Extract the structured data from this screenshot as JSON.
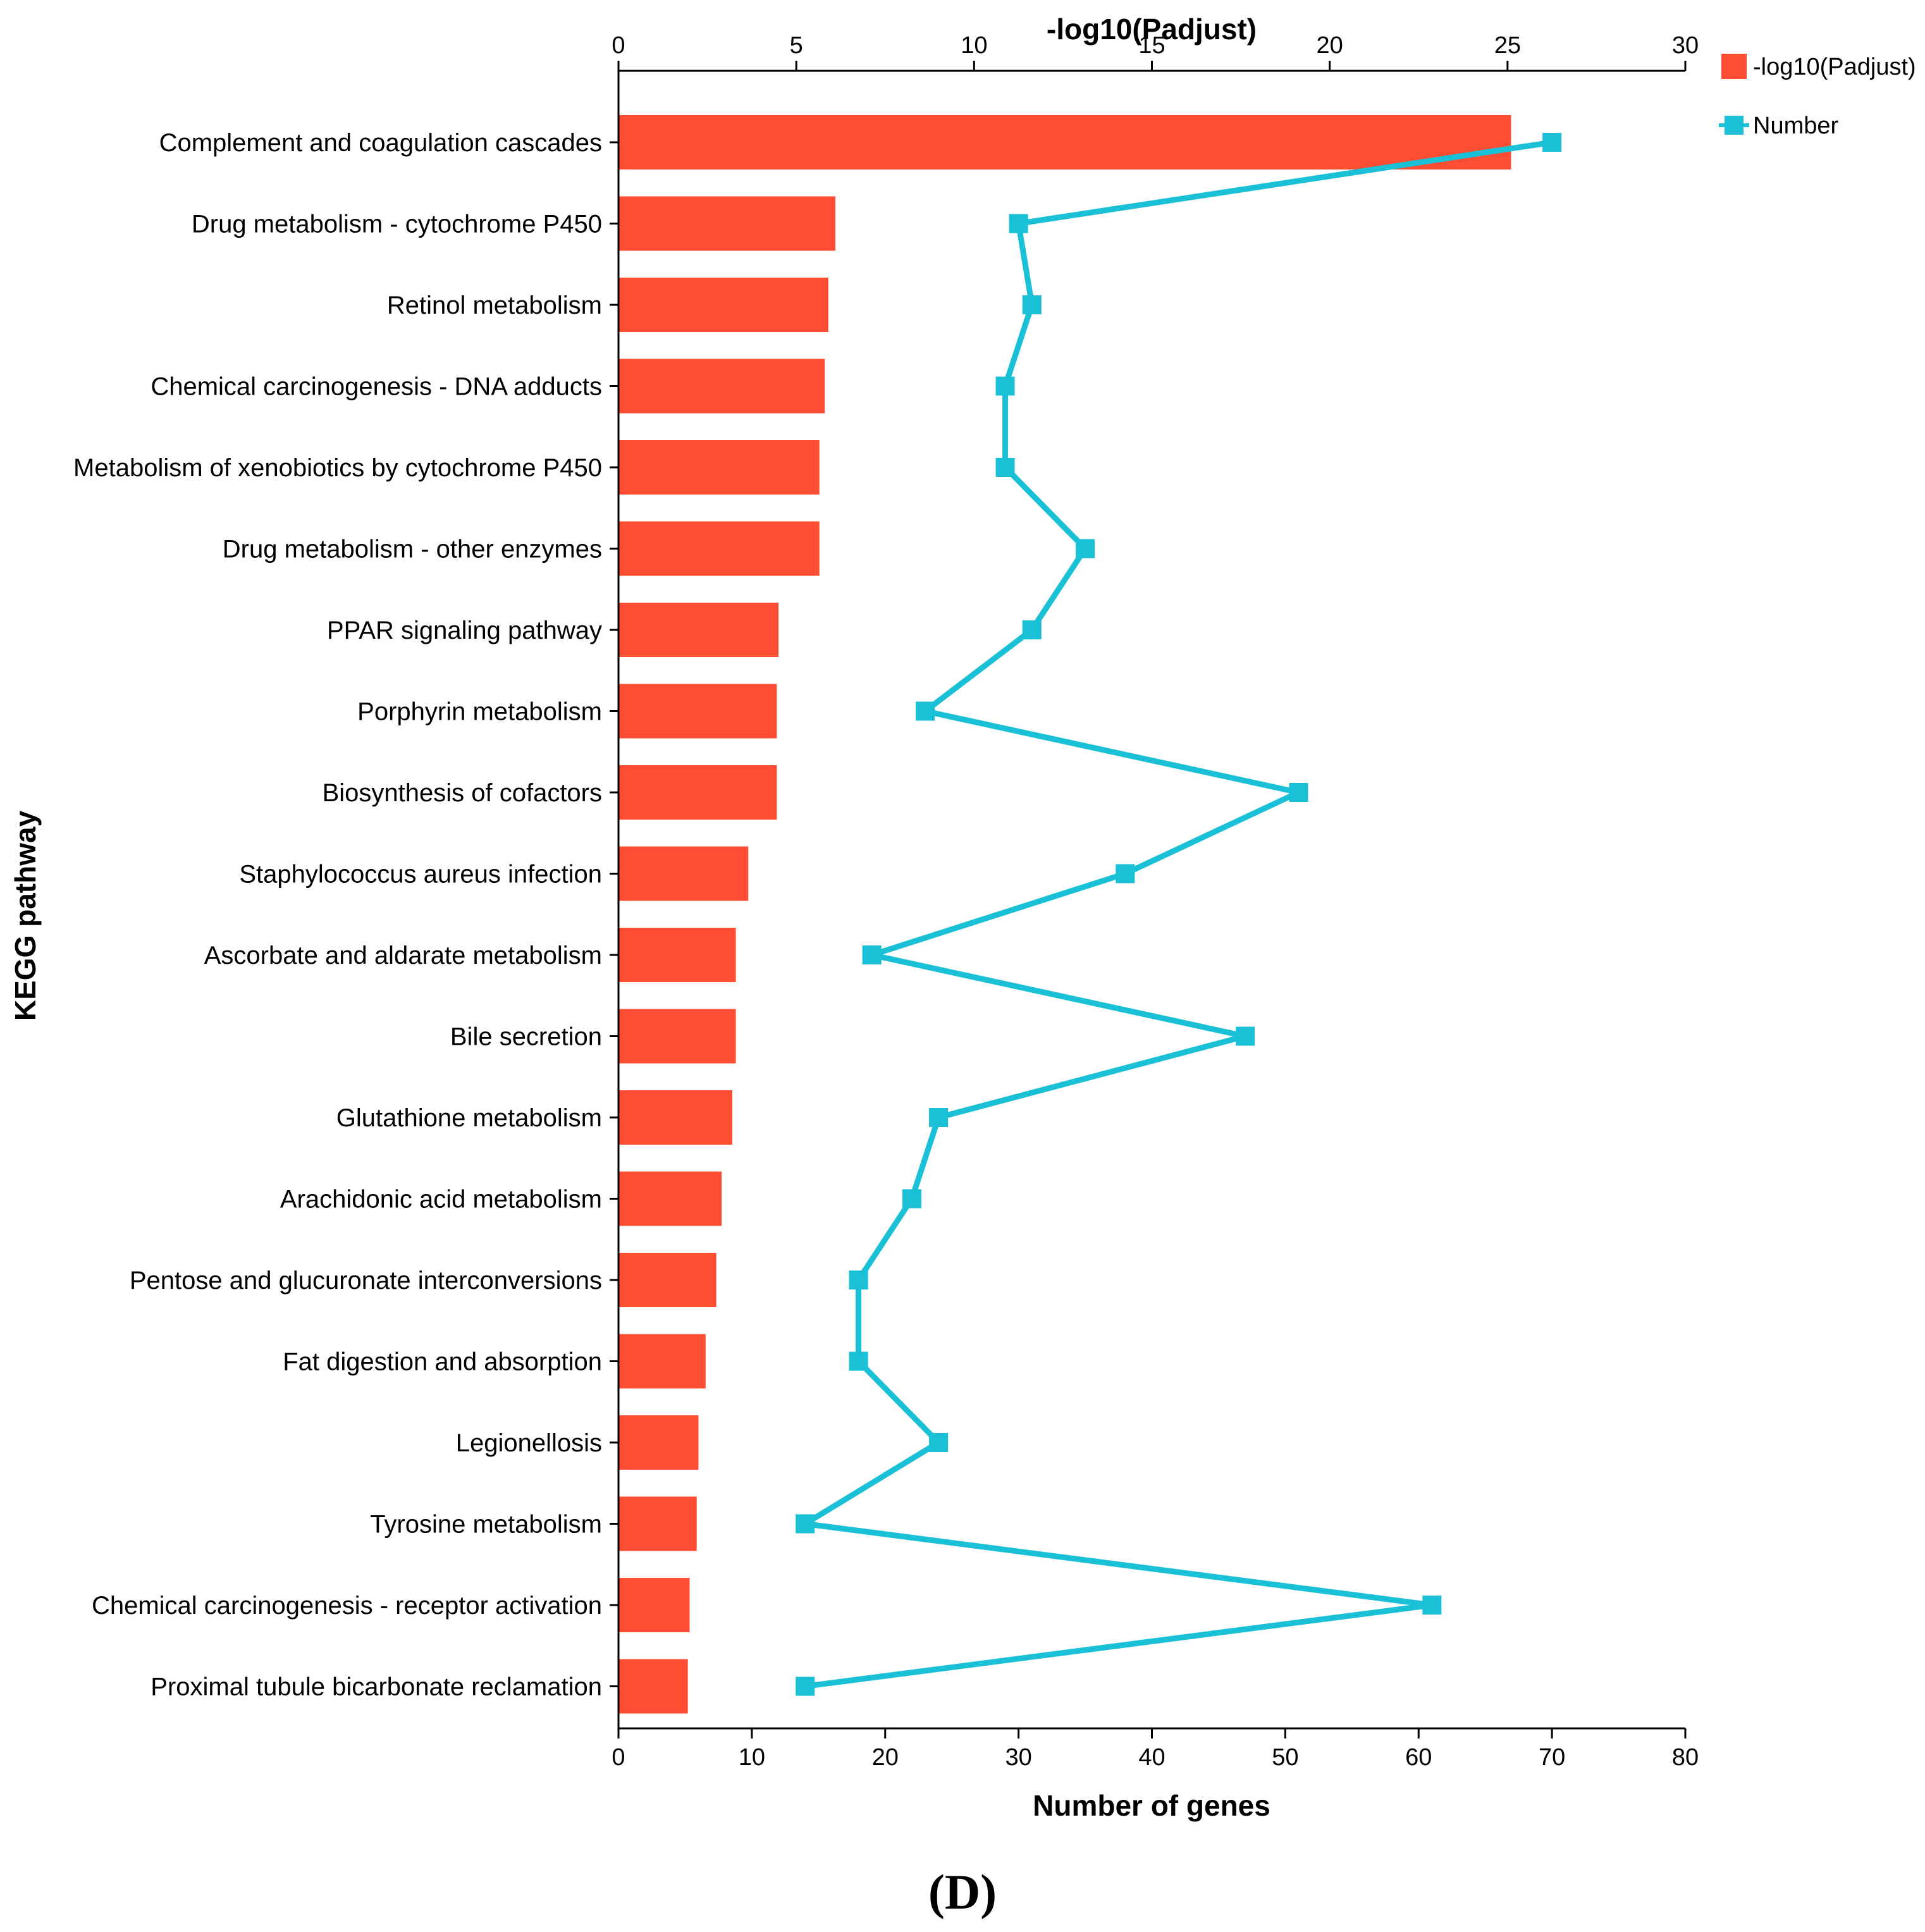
{
  "chart_data": {
    "type": "bar",
    "ylabel": "KEGG pathway",
    "categories": [
      "Complement and coagulation cascades",
      "Drug metabolism - cytochrome P450",
      "Retinol metabolism",
      "Chemical carcinogenesis - DNA adducts",
      "Metabolism of xenobiotics by cytochrome P450",
      "Drug metabolism - other enzymes",
      "PPAR signaling pathway",
      "Porphyrin metabolism",
      "Biosynthesis of cofactors",
      "Staphylococcus aureus infection",
      "Ascorbate and aldarate metabolism",
      "Bile secretion",
      "Glutathione metabolism",
      "Arachidonic acid metabolism",
      "Pentose and glucuronate interconversions",
      "Fat digestion and absorption",
      "Legionellosis",
      "Tyrosine metabolism",
      "Chemical carcinogenesis - receptor activation",
      "Proximal tubule bicarbonate reclamation"
    ],
    "top_axis": {
      "label": "-log10(Padjust)",
      "range": [
        0,
        30
      ],
      "ticks": [
        "0",
        "5",
        "10",
        "15",
        "20",
        "25",
        "30"
      ]
    },
    "bottom_axis": {
      "label": "Number of genes",
      "range": [
        0,
        80
      ],
      "ticks": [
        "0",
        "10",
        "20",
        "30",
        "40",
        "50",
        "60",
        "70",
        "80"
      ]
    },
    "series": [
      {
        "name": "-log10(Padjust)",
        "type": "bar",
        "axis": "top",
        "color": "#ff4d33",
        "values": [
          25.1,
          6.1,
          5.9,
          5.8,
          5.65,
          5.65,
          4.5,
          4.45,
          4.45,
          3.65,
          3.3,
          3.3,
          3.2,
          2.9,
          2.75,
          2.45,
          2.25,
          2.2,
          2.0,
          1.95
        ]
      },
      {
        "name": "Number",
        "type": "line",
        "axis": "bottom",
        "color": "#19c0d6",
        "values": [
          70,
          30,
          31,
          29,
          29,
          35,
          31,
          23,
          51,
          38,
          19,
          47,
          24,
          22,
          18,
          18,
          24,
          14,
          61,
          14
        ]
      }
    ],
    "legend": {
      "position": "top-right",
      "entries": [
        "-log10(Padjust)",
        "Number"
      ]
    },
    "grid": false
  },
  "panel_label": "(D)"
}
